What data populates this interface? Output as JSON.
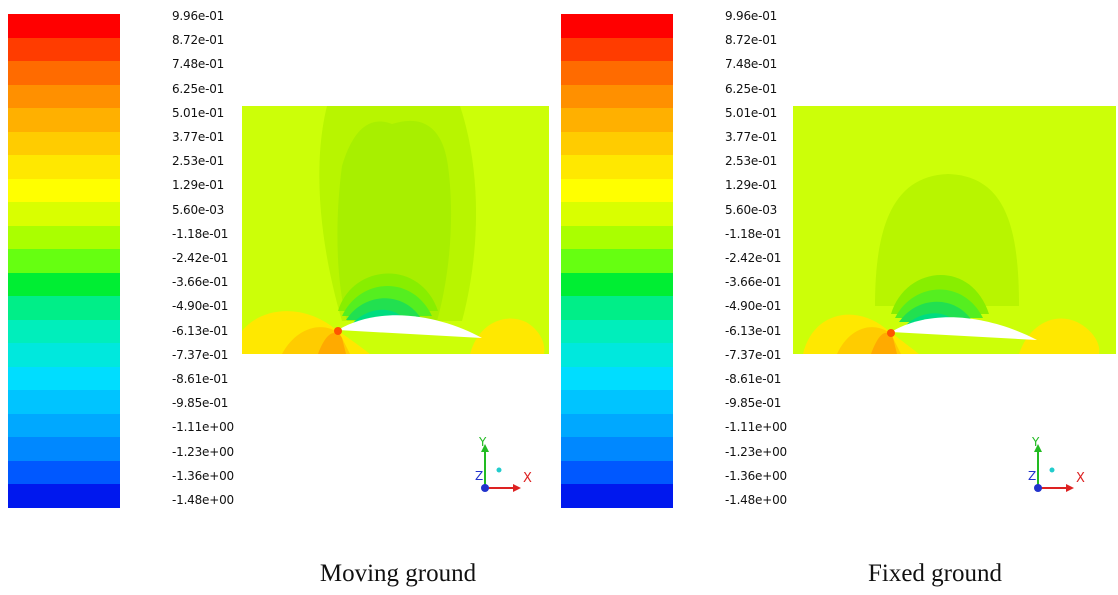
{
  "colorbar": {
    "labels": [
      "9.96e-01",
      "8.72e-01",
      "7.48e-01",
      "6.25e-01",
      "5.01e-01",
      "3.77e-01",
      "2.53e-01",
      "1.29e-01",
      "5.60e-03",
      "-1.18e-01",
      "-2.42e-01",
      "-3.66e-01",
      "-4.90e-01",
      "-6.13e-01",
      "-7.37e-01",
      "-8.61e-01",
      "-9.85e-01",
      "-1.11e+00",
      "-1.23e+00",
      "-1.36e+00",
      "-1.48e+00"
    ],
    "colors": [
      "#ff0000",
      "#ff3c00",
      "#ff6b00",
      "#ff9000",
      "#ffb000",
      "#ffcc00",
      "#ffe800",
      "#ffff00",
      "#d9ff00",
      "#aaff00",
      "#66ff11",
      "#00ee33",
      "#00ee88",
      "#00eebb",
      "#00e8dd",
      "#00ddff",
      "#00c4ff",
      "#00a8ff",
      "#0088ff",
      "#0058ff",
      "#0018ee"
    ]
  },
  "panels": [
    {
      "caption": "Moving ground"
    },
    {
      "caption": "Fixed ground"
    }
  ],
  "axes": {
    "x": "X",
    "y": "Y",
    "z": "Z"
  }
}
